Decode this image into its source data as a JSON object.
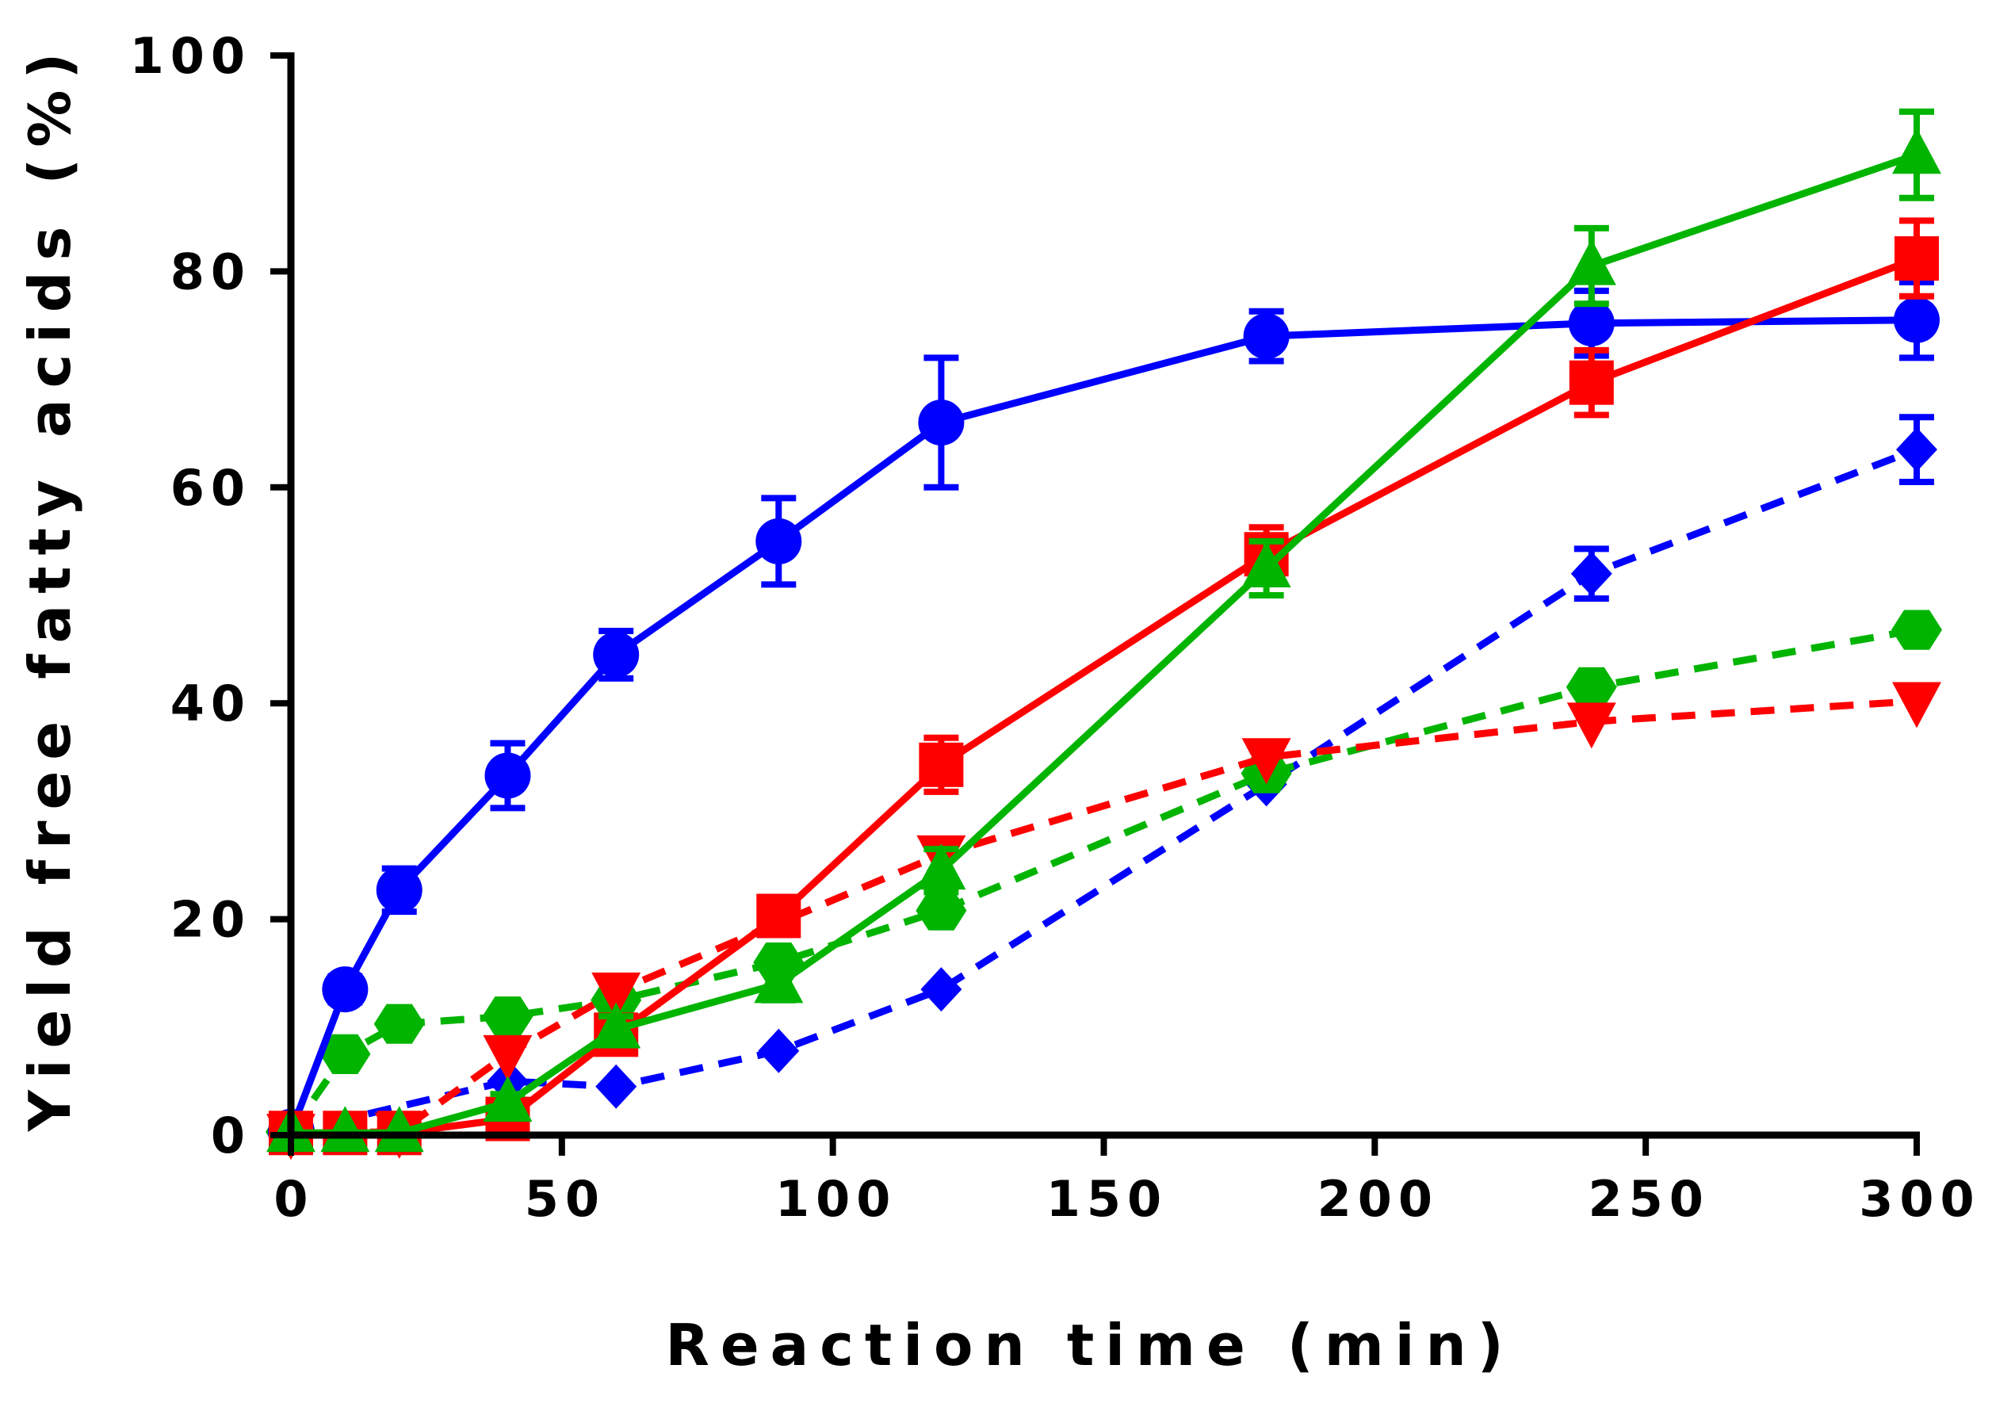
{
  "chart_data": {
    "type": "line",
    "xlabel": "Reaction time (min)",
    "ylabel": "Yield free fatty acids (%)",
    "xlim": [
      0,
      300
    ],
    "ylim": [
      0,
      100
    ],
    "xticks": [
      0,
      50,
      100,
      150,
      200,
      250,
      300
    ],
    "yticks": [
      0,
      20,
      40,
      60,
      80,
      100
    ],
    "xtick_labels": [
      "0",
      "50",
      "100",
      "150",
      "200",
      "250",
      "300"
    ],
    "ytick_labels": [
      "0",
      "20",
      "40",
      "60",
      "80",
      "100"
    ],
    "series": [
      {
        "name": "blue-solid-circle",
        "color": "#0000ff",
        "line": "solid",
        "marker": "circle",
        "x": [
          0,
          10,
          20,
          40,
          60,
          90,
          120,
          180,
          240,
          300
        ],
        "y": [
          0.3,
          13.5,
          22.7,
          33.3,
          44.5,
          55,
          66,
          74,
          75.2,
          75.5
        ],
        "err": [
          0,
          1.2,
          2,
          3,
          2.2,
          4,
          6,
          2.3,
          3,
          3.5
        ]
      },
      {
        "name": "red-solid-square",
        "color": "#ff0000",
        "line": "solid",
        "marker": "square",
        "x": [
          0,
          10,
          20,
          40,
          60,
          90,
          120,
          180,
          240,
          300
        ],
        "y": [
          0.2,
          0.2,
          0.2,
          1.5,
          9.3,
          20.3,
          34.3,
          53.8,
          69.7,
          81.2
        ],
        "err": [
          0,
          0,
          0,
          0.8,
          1.5,
          1.2,
          2.5,
          2.5,
          3,
          3.5
        ]
      },
      {
        "name": "green-solid-triangle",
        "color": "#00b400",
        "line": "solid",
        "marker": "triangle-up",
        "x": [
          0,
          10,
          20,
          40,
          60,
          90,
          120,
          180,
          240,
          300
        ],
        "y": [
          0.2,
          0.2,
          0.2,
          3,
          9.8,
          14,
          24.5,
          52.5,
          80.5,
          90.8
        ],
        "err": [
          0,
          0,
          0,
          0.8,
          1.2,
          1.5,
          2,
          2.5,
          3.5,
          4
        ]
      },
      {
        "name": "blue-dashed-diamond",
        "color": "#0000ff",
        "line": "dashed",
        "marker": "diamond",
        "x": [
          0,
          40,
          60,
          90,
          120,
          180,
          240,
          300
        ],
        "y": [
          0.3,
          5,
          4.5,
          7.8,
          13.5,
          32.5,
          52,
          63.5
        ],
        "err": [
          0,
          0,
          0,
          0,
          0,
          0,
          2.3,
          3
        ]
      },
      {
        "name": "green-dashed-hexagon",
        "color": "#00b400",
        "line": "dashed",
        "marker": "hexagon",
        "x": [
          0,
          10,
          20,
          40,
          60,
          90,
          120,
          180,
          240,
          300
        ],
        "y": [
          0.3,
          7.5,
          10.3,
          11,
          12.5,
          16,
          20.8,
          33.5,
          41.5,
          46.8
        ],
        "err": [
          0,
          0,
          0,
          0,
          0,
          0,
          0,
          0,
          0,
          0
        ]
      },
      {
        "name": "red-dashed-triangle-down",
        "color": "#ff0000",
        "line": "dashed",
        "marker": "triangle-down",
        "x": [
          0,
          20,
          40,
          60,
          120,
          180,
          240,
          300
        ],
        "y": [
          0.2,
          0.3,
          7.5,
          13.3,
          26,
          35,
          38.3,
          40.2
        ],
        "err": [
          0,
          0,
          0,
          0,
          0,
          0,
          0,
          0
        ]
      }
    ]
  }
}
